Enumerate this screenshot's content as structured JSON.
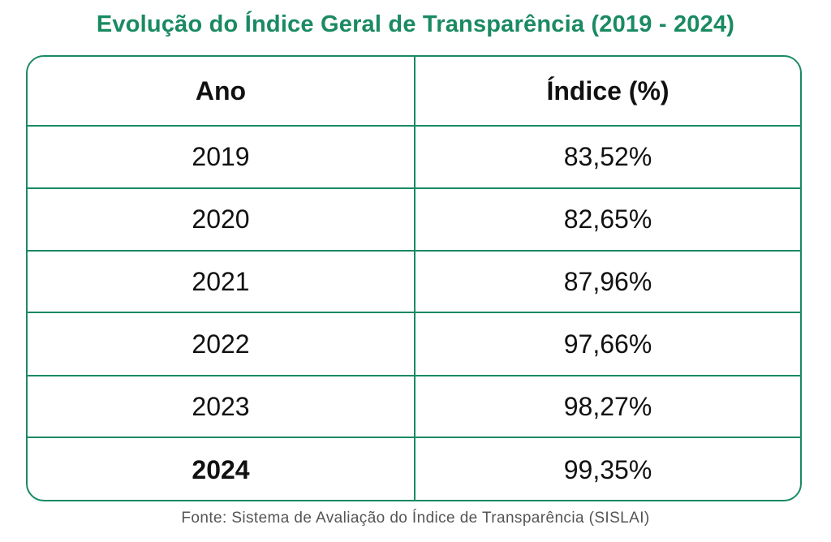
{
  "title": "Evolução do Índice Geral de Transparência (2019 - 2024)",
  "colors": {
    "accent": "#1a8a62",
    "text": "#111111",
    "footer_text": "#555555"
  },
  "table": {
    "headers": [
      "Ano",
      "Índice (%)"
    ],
    "rows": [
      {
        "year": "2019",
        "value": "83,52%"
      },
      {
        "year": "2020",
        "value": "82,65%"
      },
      {
        "year": "2021",
        "value": "87,96%"
      },
      {
        "year": "2022",
        "value": "97,66%"
      },
      {
        "year": "2023",
        "value": "98,27%"
      },
      {
        "year": "2024",
        "value": "99,35%"
      }
    ]
  },
  "footer": "Fonte: Sistema de Avaliação do Índice de Transparência (SISLAI)",
  "chart_data": {
    "type": "table",
    "title": "Evolução do Índice Geral de Transparência (2019 - 2024)",
    "columns": [
      "Ano",
      "Índice (%)"
    ],
    "x": [
      "2019",
      "2020",
      "2021",
      "2022",
      "2023",
      "2024"
    ],
    "values": [
      83.52,
      82.65,
      87.96,
      97.66,
      98.27,
      99.35
    ]
  }
}
